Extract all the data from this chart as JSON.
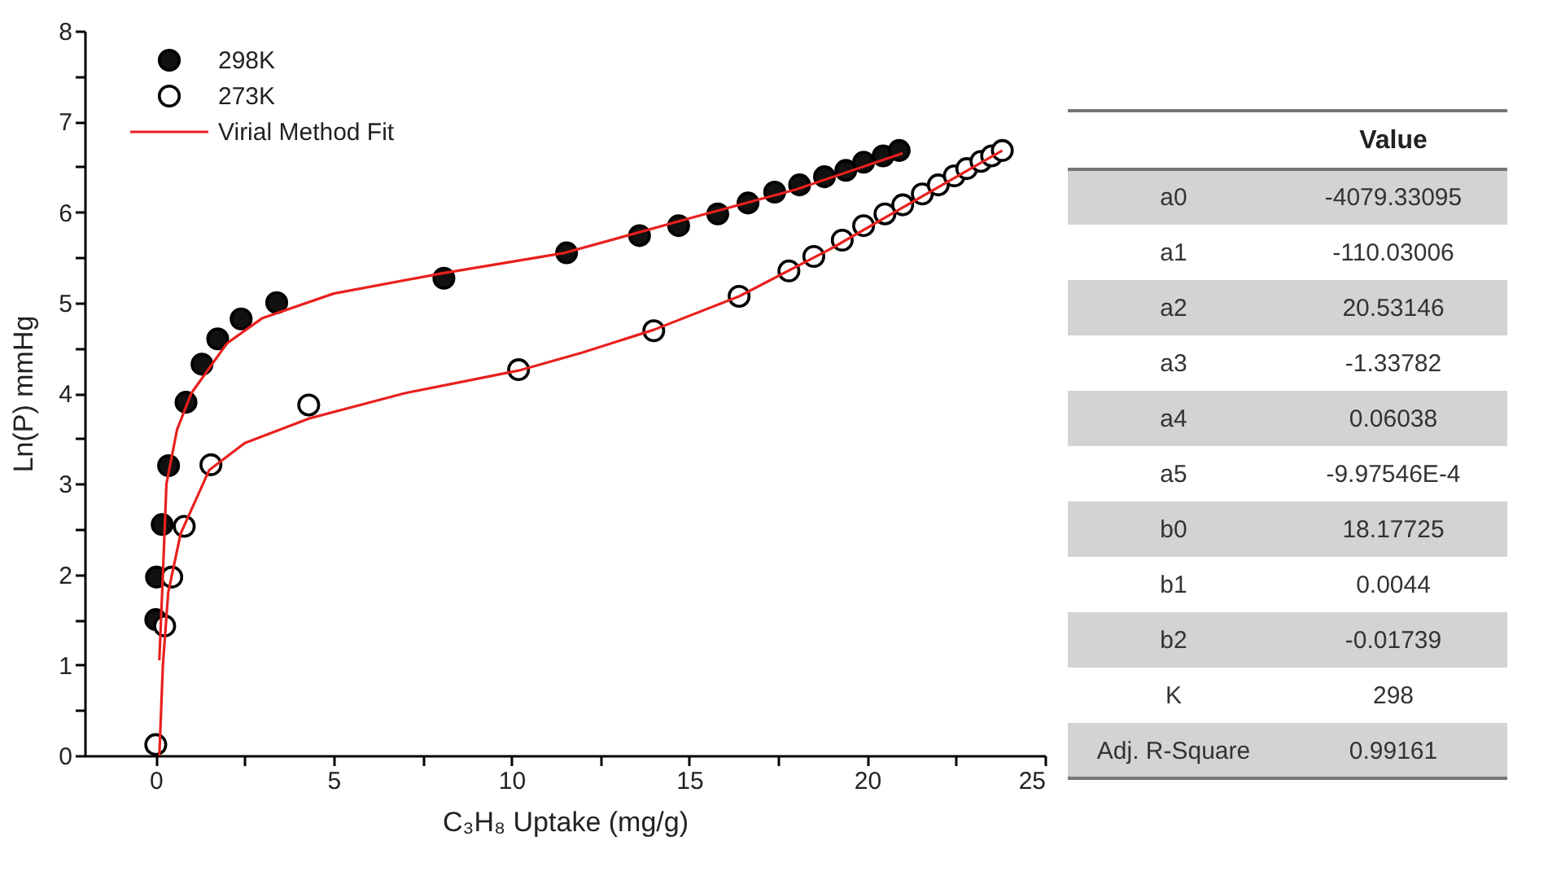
{
  "chart_data": [
    {
      "type": "scatter",
      "xlabel": "C₃H₈  Uptake  (mg/g)",
      "ylabel": "Ln(P)  mmHg",
      "xlim": [
        -2,
        25
      ],
      "ylim": [
        0,
        8
      ],
      "xticks": [
        0,
        {
          "value": 2.5,
          "label": null
        },
        5,
        {
          "value": 7.5,
          "label": null
        },
        10,
        {
          "value": 12.5,
          "label": null
        },
        15,
        {
          "value": 17.5,
          "label": null
        },
        20,
        {
          "value": 22.5,
          "label": null
        },
        25
      ],
      "yticks": [
        0,
        {
          "value": 0.5,
          "label": null
        },
        1,
        {
          "value": 1.5,
          "label": null
        },
        2,
        {
          "value": 2.5,
          "label": null
        },
        3,
        {
          "value": 3.5,
          "label": null
        },
        4,
        {
          "value": 4.5,
          "label": null
        },
        5,
        {
          "value": 5.5,
          "label": null
        },
        6,
        {
          "value": 6.5,
          "label": null
        },
        7,
        {
          "value": 7.5,
          "label": null
        },
        8
      ],
      "grid": false,
      "legend": "top left",
      "series": [
        {
          "name": "298K",
          "type": "scatter",
          "marker": "circle",
          "color": "#111111",
          "x": [
            0.0,
            0.02,
            0.18,
            0.36,
            0.85,
            1.3,
            1.74,
            2.4,
            3.4,
            8.1,
            11.55,
            13.6,
            14.7,
            15.8,
            16.65,
            17.4,
            18.1,
            18.8,
            19.4,
            19.9,
            20.45,
            20.9
          ],
          "values": [
            1.5,
            1.97,
            2.55,
            3.2,
            3.9,
            4.32,
            4.6,
            4.82,
            5.0,
            5.27,
            5.55,
            5.74,
            5.85,
            5.98,
            6.1,
            6.22,
            6.3,
            6.39,
            6.46,
            6.55,
            6.62,
            6.68
          ]
        },
        {
          "name": "273K",
          "type": "scatter",
          "marker": "circle",
          "color": "#ffffff",
          "x": [
            0.0,
            0.25,
            0.45,
            0.8,
            1.55,
            4.3,
            10.2,
            14.0,
            16.4,
            17.8,
            18.5,
            19.3,
            19.9,
            20.5,
            21.0,
            21.55,
            22.0,
            22.45,
            22.8,
            23.2,
            23.5,
            23.8
          ],
          "values": [
            0.12,
            1.43,
            1.97,
            2.53,
            3.21,
            3.87,
            4.26,
            4.69,
            5.07,
            5.35,
            5.51,
            5.69,
            5.85,
            5.98,
            6.08,
            6.2,
            6.3,
            6.4,
            6.48,
            6.56,
            6.62,
            6.68
          ]
        },
        {
          "name": "Virial Method Fit",
          "type": "line",
          "color": "#e8201e",
          "x": [
            0.1,
            0.2,
            0.3,
            0.6,
            1.0,
            2.0,
            3.0,
            5.0,
            8.0,
            11.5,
            15.0,
            18.0,
            21.0
          ],
          "values": [
            1.05,
            2.0,
            3.0,
            3.6,
            4.0,
            4.55,
            4.83,
            5.1,
            5.32,
            5.55,
            5.93,
            6.25,
            6.65
          ]
        },
        {
          "type": "line",
          "color": "#e8201e",
          "x": [
            0.1,
            0.2,
            0.35,
            0.7,
            1.5,
            2.5,
            4.3,
            7.0,
            10.2,
            12.0,
            14.0,
            16.4,
            19.0,
            21.0,
            23.8
          ],
          "values": [
            0.0,
            1.0,
            1.8,
            2.45,
            3.15,
            3.45,
            3.72,
            4.0,
            4.25,
            4.45,
            4.7,
            5.07,
            5.6,
            6.05,
            6.68
          ]
        }
      ]
    },
    {
      "type": "other",
      "title": "Value",
      "categories": [
        "a0",
        "a1",
        "a2",
        "a3",
        "a4",
        "a5",
        "b0",
        "b1",
        "b2",
        "K",
        "Adj. R-Square"
      ],
      "value_labels": [
        "-4079.33095",
        "-110.03006",
        "20.53146",
        "-1.33782",
        "0.06038",
        "-9.97546E-4",
        "18.17725",
        "0.0044",
        "-0.01739",
        "298",
        "0.99161"
      ]
    }
  ]
}
